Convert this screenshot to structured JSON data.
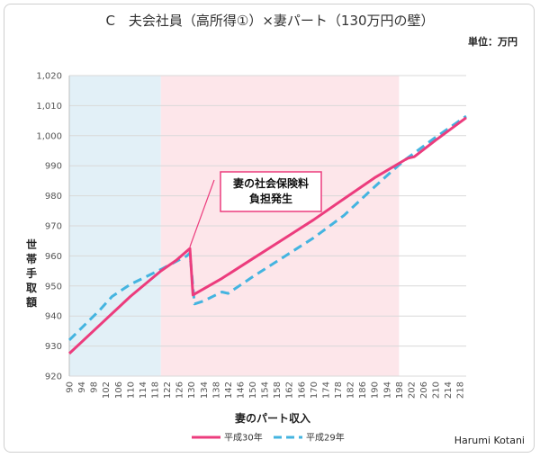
{
  "chart_data": {
    "type": "line",
    "title": "C　夫会社員（高所得①）×妻パート（130万円の壁）",
    "unit_label": "単位：万円",
    "xlabel": "妻のパート収入",
    "ylabel": "世帯手取額",
    "credit": "Harumi Kotani",
    "annotation": {
      "lines": [
        "妻の社会保険料",
        "負担発生"
      ],
      "x": 129.5,
      "y": 963
    },
    "xlim": [
      90,
      220
    ],
    "ylim": [
      920,
      1020
    ],
    "yticks": [
      920,
      930,
      940,
      950,
      960,
      970,
      980,
      990,
      1000,
      1010,
      1020
    ],
    "ytick_labels": [
      "920",
      "930",
      "940",
      "950",
      "960",
      "970",
      "980",
      "990",
      "1,000",
      "1,010",
      "1,020"
    ],
    "xticks": [
      90,
      94,
      98,
      102,
      106,
      110,
      114,
      118,
      122,
      126,
      130,
      134,
      138,
      142,
      146,
      150,
      154,
      158,
      162,
      166,
      170,
      174,
      178,
      182,
      186,
      190,
      194,
      198,
      202,
      206,
      210,
      214,
      218
    ],
    "bands": [
      {
        "from": 90,
        "to": 120,
        "color": "#e2f0f7"
      },
      {
        "from": 120,
        "to": 198,
        "color": "#fde6ea"
      }
    ],
    "series": [
      {
        "name": "平成30年",
        "color": "#ec3c7d",
        "dash": "solid",
        "points": [
          [
            90,
            927.5
          ],
          [
            100,
            937
          ],
          [
            110,
            946.5
          ],
          [
            120,
            955
          ],
          [
            125,
            958.5
          ],
          [
            129.5,
            962.5
          ],
          [
            130.5,
            947
          ],
          [
            140,
            952.5
          ],
          [
            150,
            959
          ],
          [
            160,
            965.5
          ],
          [
            170,
            972
          ],
          [
            180,
            979
          ],
          [
            190,
            986
          ],
          [
            200,
            992
          ],
          [
            201,
            992.5
          ],
          [
            203,
            993
          ],
          [
            210,
            998.5
          ],
          [
            220,
            1006
          ]
        ]
      },
      {
        "name": "平成29年",
        "color": "#44b4e0",
        "dash": "dashed",
        "points": [
          [
            90,
            932
          ],
          [
            100,
            942
          ],
          [
            104,
            946.5
          ],
          [
            110,
            950.5
          ],
          [
            120,
            955.5
          ],
          [
            128.5,
            960
          ],
          [
            129.5,
            961
          ],
          [
            131,
            944
          ],
          [
            134,
            945
          ],
          [
            138,
            947
          ],
          [
            140,
            948
          ],
          [
            142,
            947.5
          ],
          [
            150,
            953
          ],
          [
            160,
            959.5
          ],
          [
            170,
            966
          ],
          [
            180,
            973.5
          ],
          [
            190,
            983
          ],
          [
            196,
            988.5
          ],
          [
            200,
            992
          ],
          [
            210,
            999.5
          ],
          [
            220,
            1006.5
          ]
        ]
      }
    ],
    "legend_position": "bottom-center"
  }
}
